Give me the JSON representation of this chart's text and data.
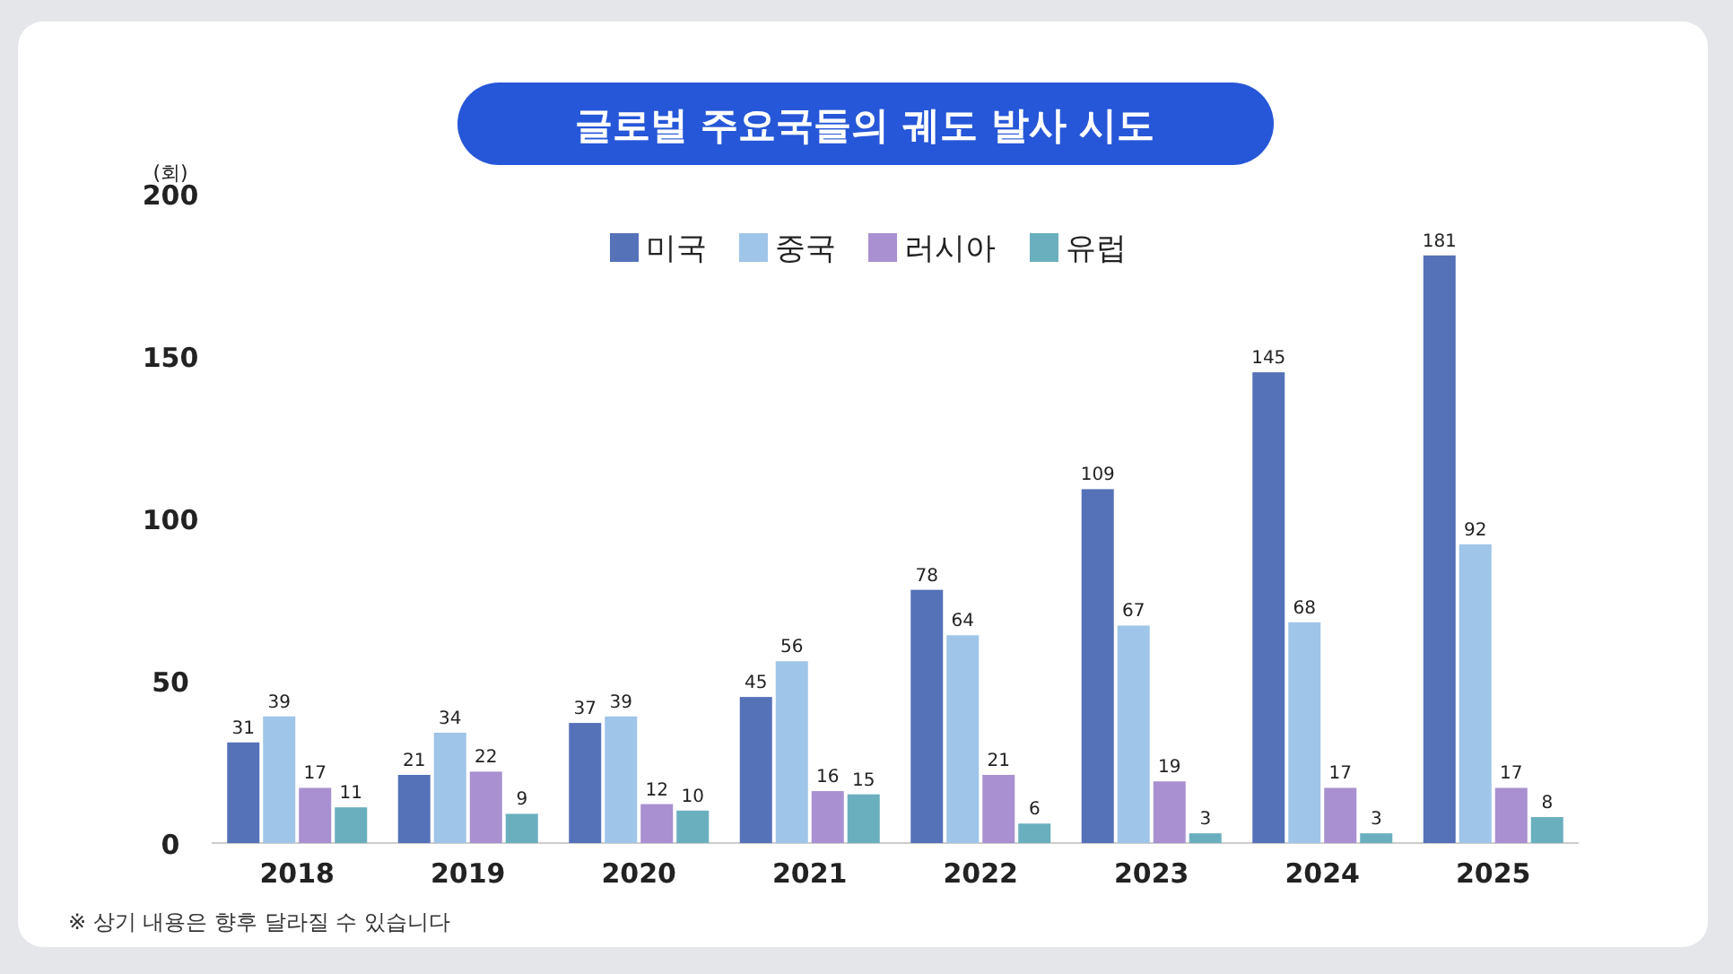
{
  "chart_data": {
    "type": "bar",
    "title": "글로벌 주요국들의 궤도 발사 시도",
    "ylabel": "(회)",
    "categories": [
      "2018",
      "2019",
      "2020",
      "2021",
      "2022",
      "2023",
      "2024",
      "2025"
    ],
    "series": [
      {
        "name": "미국",
        "color": "#5572b8",
        "values": [
          31,
          21,
          37,
          45,
          78,
          109,
          145,
          181
        ]
      },
      {
        "name": "중국",
        "color": "#9fc5e8",
        "values": [
          39,
          34,
          39,
          56,
          64,
          67,
          68,
          92
        ]
      },
      {
        "name": "러시아",
        "color": "#a990d0",
        "values": [
          17,
          22,
          12,
          16,
          21,
          19,
          17,
          17
        ]
      },
      {
        "name": "유럽",
        "color": "#6aafbe",
        "values": [
          11,
          9,
          10,
          15,
          6,
          3,
          3,
          8
        ]
      }
    ],
    "ylim": [
      0,
      200
    ],
    "yticks": [
      0,
      50,
      100,
      150,
      200
    ],
    "data_labels": true,
    "legend": "top",
    "annotations": [
      "※ 상기 내용은 향후 달라질 수 있습니다"
    ]
  }
}
